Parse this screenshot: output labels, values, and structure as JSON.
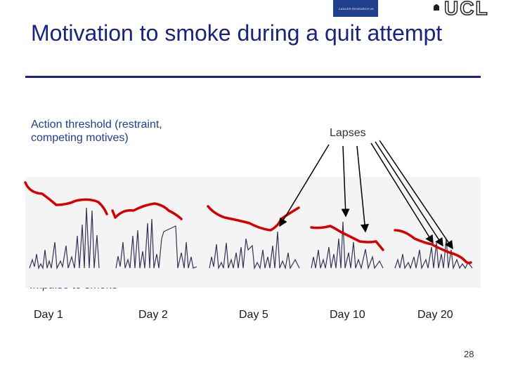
{
  "slide": {
    "title": "Motivation to smoke during a quit attempt",
    "slide_number": "28"
  },
  "logos": {
    "left_text": "CANCER RESEARCH UK",
    "right_text": "UCL"
  },
  "labels": {
    "threshold": "Action threshold (restraint, competing motives)",
    "lapses": "Lapses",
    "impulse": "Impulse to smoke"
  },
  "days": [
    "Day 1",
    "Day 2",
    "Day 5",
    "Day 10",
    "Day 20"
  ],
  "colors": {
    "title": "#1a237e",
    "threshold_line": "#d50000",
    "impulse_trace": "#333355",
    "arrow": "#000000"
  }
}
